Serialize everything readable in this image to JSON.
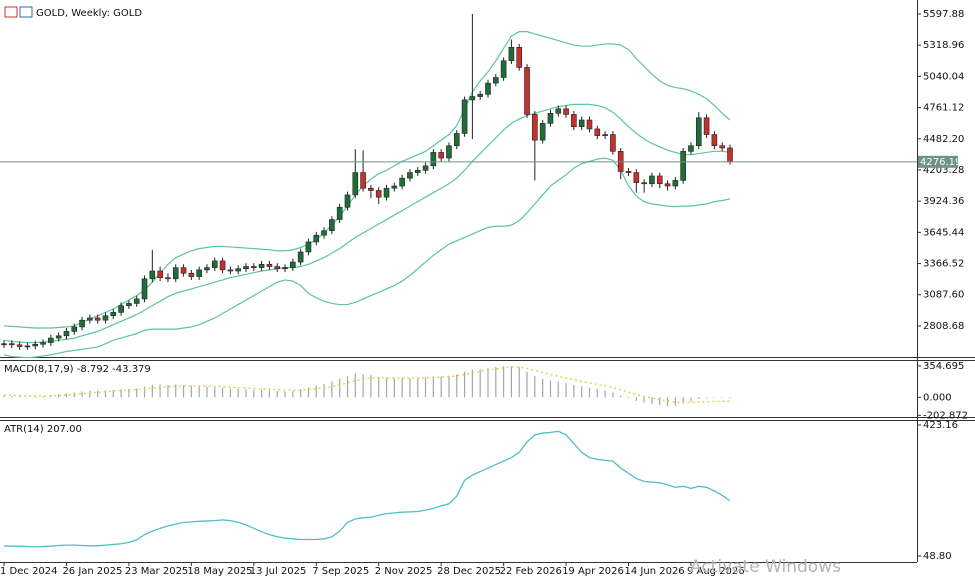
{
  "chart_data": {
    "type": "candlestick",
    "title": "GOLD, Weekly: GOLD",
    "categories": [
      "1 Dec 2024",
      null,
      null,
      null,
      null,
      null,
      null,
      null,
      "26 Jan 2025",
      null,
      null,
      null,
      null,
      null,
      null,
      null,
      "23 Mar 2025",
      null,
      null,
      null,
      null,
      null,
      null,
      null,
      "18 May 2025",
      null,
      null,
      null,
      null,
      null,
      null,
      null,
      "13 Jul 2025",
      null,
      null,
      null,
      null,
      null,
      null,
      null,
      "7 Sep 2025",
      null,
      null,
      null,
      null,
      null,
      null,
      null,
      "2 Nov 2025",
      null,
      null,
      null,
      null,
      null,
      null,
      null,
      "28 Dec 2025",
      null,
      null,
      null,
      null,
      null,
      null,
      null,
      "22 Feb 2026",
      null,
      null,
      null,
      null,
      null,
      null,
      null,
      "19 Apr 2026",
      null,
      null,
      null,
      null,
      null,
      null,
      null,
      "14 Jun 2026",
      null,
      null,
      null,
      null,
      null,
      null,
      null,
      "9 Aug 2026",
      null,
      null,
      null,
      null,
      null
    ],
    "open": [
      2640,
      2650,
      2640,
      2625,
      2630,
      2645,
      2660,
      2700,
      2720,
      2760,
      2800,
      2860,
      2880,
      2860,
      2900,
      2930,
      2990,
      3010,
      3050,
      3230,
      3300,
      3240,
      3230,
      3330,
      3280,
      3250,
      3310,
      3330,
      3390,
      3310,
      3300,
      3320,
      3340,
      3330,
      3360,
      3340,
      3320,
      3330,
      3380,
      3470,
      3560,
      3620,
      3660,
      3760,
      3870,
      3980,
      4180,
      4040,
      4020,
      3960,
      4040,
      4060,
      4130,
      4180,
      4200,
      4240,
      4360,
      4310,
      4420,
      4530,
      4830,
      4860,
      4880,
      4980,
      5030,
      5180,
      5300,
      5120,
      4700,
      4470,
      4620,
      4710,
      4750,
      4700,
      4590,
      4650,
      4570,
      4510,
      4520,
      4370,
      4190,
      4180,
      4090,
      4080,
      4150,
      4080,
      4060,
      4110,
      4370,
      4420,
      4670,
      4520,
      4420,
      4400
    ],
    "high": [
      2680,
      2680,
      2670,
      2660,
      2675,
      2690,
      2730,
      2750,
      2790,
      2830,
      2890,
      2910,
      2910,
      2930,
      2960,
      3020,
      3040,
      3080,
      3260,
      3490,
      3340,
      3280,
      3360,
      3360,
      3310,
      3340,
      3360,
      3420,
      3420,
      3340,
      3350,
      3370,
      3370,
      3390,
      3390,
      3370,
      3360,
      3410,
      3500,
      3590,
      3650,
      3690,
      3790,
      3900,
      4010,
      4390,
      4380,
      4070,
      4050,
      4070,
      4090,
      4160,
      4210,
      4230,
      4270,
      4390,
      4390,
      4450,
      4560,
      4860,
      5598,
      4910,
      5010,
      5060,
      5210,
      5370,
      5330,
      5150,
      4730,
      4650,
      4740,
      4780,
      4780,
      4730,
      4680,
      4680,
      4600,
      4550,
      4550,
      4400,
      4220,
      4210,
      4120,
      4180,
      4180,
      4110,
      4140,
      4400,
      4450,
      4720,
      4700,
      4550,
      4450,
      4430
    ],
    "low": [
      2610,
      2610,
      2595,
      2595,
      2600,
      2615,
      2630,
      2670,
      2690,
      2730,
      2770,
      2830,
      2830,
      2830,
      2870,
      2900,
      2960,
      2980,
      3020,
      3200,
      3210,
      3200,
      3200,
      3250,
      3220,
      3220,
      3280,
      3300,
      3280,
      3270,
      3270,
      3290,
      3300,
      3300,
      3310,
      3290,
      3290,
      3300,
      3350,
      3440,
      3530,
      3590,
      3630,
      3730,
      3840,
      3950,
      4010,
      3950,
      3900,
      3930,
      4010,
      4030,
      4100,
      4150,
      4170,
      4210,
      4280,
      4280,
      4390,
      4500,
      4480,
      4830,
      4850,
      4950,
      5000,
      5150,
      5090,
      4670,
      4110,
      4440,
      4590,
      4680,
      4670,
      4560,
      4560,
      4540,
      4480,
      4480,
      4340,
      4120,
      4150,
      4000,
      4000,
      4050,
      4040,
      4020,
      4030,
      4080,
      4340,
      4390,
      4490,
      4390,
      4370,
      4250
    ],
    "close": [
      2650,
      2640,
      2625,
      2630,
      2645,
      2660,
      2700,
      2720,
      2760,
      2800,
      2860,
      2880,
      2860,
      2900,
      2930,
      2990,
      3010,
      3050,
      3230,
      3300,
      3240,
      3230,
      3330,
      3280,
      3250,
      3310,
      3330,
      3390,
      3310,
      3300,
      3320,
      3340,
      3330,
      3360,
      3340,
      3320,
      3330,
      3380,
      3470,
      3560,
      3620,
      3660,
      3760,
      3870,
      3980,
      4180,
      4040,
      4020,
      3960,
      4040,
      4060,
      4130,
      4180,
      4200,
      4240,
      4360,
      4310,
      4420,
      4530,
      4830,
      4860,
      4880,
      4980,
      5030,
      5180,
      5300,
      5120,
      4700,
      4470,
      4620,
      4710,
      4750,
      4700,
      4590,
      4650,
      4570,
      4510,
      4520,
      4370,
      4190,
      4180,
      4090,
      4080,
      4150,
      4080,
      4060,
      4110,
      4370,
      4420,
      4670,
      4520,
      4420,
      4400,
      4276.19
    ],
    "color_up": "#1f6e3a",
    "color_down": "#c8302c",
    "last_price": 4276.19,
    "last_price_color": "#6f9484",
    "series": [
      {
        "color": "#5ec49c",
        "values": [
          2810,
          2805,
          2800,
          2795,
          2790,
          2790,
          2790,
          2795,
          2800,
          2810,
          2840,
          2870,
          2900,
          2930,
          2960,
          3000,
          3040,
          3080,
          3130,
          3200,
          3280,
          3360,
          3420,
          3450,
          3480,
          3500,
          3510,
          3520,
          3520,
          3515,
          3510,
          3505,
          3500,
          3495,
          3490,
          3480,
          3480,
          3490,
          3510,
          3540,
          3580,
          3640,
          3710,
          3790,
          3880,
          3980,
          4060,
          4120,
          4170,
          4200,
          4240,
          4280,
          4310,
          4340,
          4370,
          4420,
          4470,
          4520,
          4600,
          4750,
          4900,
          5000,
          5080,
          5180,
          5290,
          5400,
          5440,
          5440,
          5420,
          5400,
          5380,
          5360,
          5340,
          5320,
          5310,
          5310,
          5320,
          5330,
          5330,
          5320,
          5280,
          5200,
          5130,
          5060,
          5000,
          4960,
          4940,
          4930,
          4910,
          4880,
          4840,
          4780,
          4710,
          4650
        ]
      },
      {
        "color": "#5ec49c",
        "values": [
          2680,
          2670,
          2665,
          2660,
          2660,
          2665,
          2670,
          2680,
          2690,
          2700,
          2720,
          2740,
          2760,
          2790,
          2820,
          2850,
          2880,
          2910,
          2950,
          2990,
          3030,
          3070,
          3100,
          3120,
          3140,
          3160,
          3180,
          3200,
          3220,
          3240,
          3255,
          3270,
          3285,
          3300,
          3310,
          3320,
          3330,
          3330,
          3340,
          3360,
          3390,
          3420,
          3460,
          3500,
          3550,
          3600,
          3640,
          3680,
          3720,
          3760,
          3800,
          3840,
          3880,
          3920,
          3960,
          4000,
          4040,
          4080,
          4130,
          4200,
          4280,
          4350,
          4420,
          4490,
          4560,
          4620,
          4660,
          4690,
          4710,
          4730,
          4750,
          4770,
          4780,
          4790,
          4790,
          4790,
          4780,
          4760,
          4720,
          4660,
          4590,
          4530,
          4480,
          4440,
          4410,
          4380,
          4360,
          4340,
          4340,
          4350,
          4360,
          4370,
          4370,
          4360
        ]
      },
      {
        "color": "#5ec49c",
        "values": [
          2550,
          2535,
          2530,
          2525,
          2530,
          2540,
          2550,
          2565,
          2580,
          2590,
          2600,
          2610,
          2620,
          2650,
          2680,
          2700,
          2720,
          2740,
          2770,
          2780,
          2780,
          2780,
          2780,
          2790,
          2800,
          2820,
          2850,
          2880,
          2920,
          2960,
          3000,
          3040,
          3080,
          3120,
          3160,
          3200,
          3220,
          3210,
          3170,
          3100,
          3060,
          3030,
          3010,
          3000,
          3000,
          3020,
          3050,
          3080,
          3110,
          3140,
          3170,
          3210,
          3260,
          3320,
          3380,
          3440,
          3490,
          3540,
          3570,
          3600,
          3630,
          3660,
          3690,
          3700,
          3700,
          3710,
          3750,
          3820,
          3900,
          3980,
          4060,
          4110,
          4160,
          4220,
          4260,
          4280,
          4300,
          4310,
          4290,
          4200,
          4060,
          3970,
          3920,
          3900,
          3890,
          3880,
          3875,
          3880,
          3880,
          3890,
          3900,
          3920,
          3930,
          3945
        ]
      }
    ],
    "ylim": [
      2531,
      5723
    ],
    "yticks": [
      5597.88,
      5318.96,
      5040.04,
      4761.12,
      {
        "value": 4482.2,
        "label": "4482.20"
      },
      4203.28,
      3924.36,
      3645.44,
      3366.52,
      {
        "value": 3087.6,
        "label": "3087.60"
      },
      2808.68
    ],
    "indicators": [
      {
        "title": "MACD(8,17,9) -8.792 -43.379",
        "ylim": [
          -222,
          410
        ],
        "yticks": [
          354.695,
          {
            "value": 0,
            "label": "0.000"
          },
          -202.872
        ],
        "series": [
          {
            "type": "bar",
            "color": "#a6a6a6",
            "values": [
              20,
              15,
              10,
              8,
              10,
              15,
              25,
              35,
              45,
              55,
              65,
              75,
              75,
              80,
              85,
              90,
              95,
              100,
              120,
              140,
              145,
              140,
              145,
              140,
              130,
              125,
              120,
              120,
              110,
              100,
              95,
              90,
              85,
              85,
              80,
              75,
              70,
              75,
              90,
              110,
              130,
              150,
              180,
              210,
              240,
              270,
              260,
              250,
              230,
              220,
              215,
              215,
              215,
              220,
              225,
              235,
              235,
              245,
              260,
              290,
              310,
              320,
              330,
              340,
              350,
              355,
              340,
              290,
              240,
              210,
              190,
              180,
              160,
              140,
              125,
              110,
              95,
              80,
              55,
              20,
              -10,
              -40,
              -60,
              -75,
              -90,
              -100,
              -95,
              -70,
              -50,
              -20,
              -10,
              -5,
              -5,
              -8.792
            ]
          },
          {
            "type": "line",
            "dash": true,
            "color": "#e6cf3c",
            "values": [
              25,
              22,
              19,
              16,
              14,
              14,
              17,
              22,
              28,
              35,
              42,
              50,
              57,
              63,
              70,
              77,
              83,
              89,
              97,
              106,
              114,
              120,
              125,
              128,
              129,
              128,
              126,
              124,
              120,
              115,
              110,
              105,
              100,
              96,
              92,
              88,
              84,
              81,
              83,
              89,
              97,
              108,
              122,
              140,
              162,
              186,
              205,
              218,
              222,
              221,
              219,
              218,
              217,
              218,
              220,
              224,
              228,
              233,
              242,
              258,
              276,
              292,
              307,
              320,
              333,
              343,
              342,
              327,
              304,
              278,
              256,
              237,
              218,
              199,
              180,
              162,
              145,
              129,
              110,
              87,
              60,
              32,
              10,
              -8,
              -25,
              -42,
              -52,
              -58,
              -60,
              -55,
              -50,
              -47,
              -45,
              -43.379
            ]
          }
        ]
      },
      {
        "title": "ATR(14) 207.00",
        "ylim": [
          31.8,
          434.5
        ],
        "yticks": [
          423.16,
          {
            "value": 48.8,
            "label": "48.80"
          }
        ],
        "series": [
          {
            "type": "line",
            "color": "#4fbfc4",
            "values": [
              78,
              77,
              77,
              76,
              75,
              76,
              77,
              79,
              80,
              80,
              79,
              78,
              78,
              80,
              82,
              84,
              88,
              95,
              110,
              120,
              128,
              135,
              140,
              145,
              146,
              148,
              149,
              150,
              152,
              150,
              145,
              138,
              128,
              118,
              110,
              104,
              100,
              98,
              96,
              96,
              96,
              98,
              104,
              120,
              145,
              155,
              158,
              160,
              165,
              170,
              172,
              174,
              175,
              176,
              180,
              185,
              192,
              198,
              220,
              265,
              280,
              290,
              300,
              310,
              320,
              330,
              345,
              375,
              395,
              400,
              402,
              405,
              395,
              370,
              345,
              330,
              325,
              322,
              320,
              300,
              285,
              270,
              262,
              260,
              258,
              252,
              245,
              248,
              242,
              248,
              245,
              235,
              222,
              207
            ]
          }
        ]
      }
    ]
  },
  "watermark": "Activate Windows"
}
